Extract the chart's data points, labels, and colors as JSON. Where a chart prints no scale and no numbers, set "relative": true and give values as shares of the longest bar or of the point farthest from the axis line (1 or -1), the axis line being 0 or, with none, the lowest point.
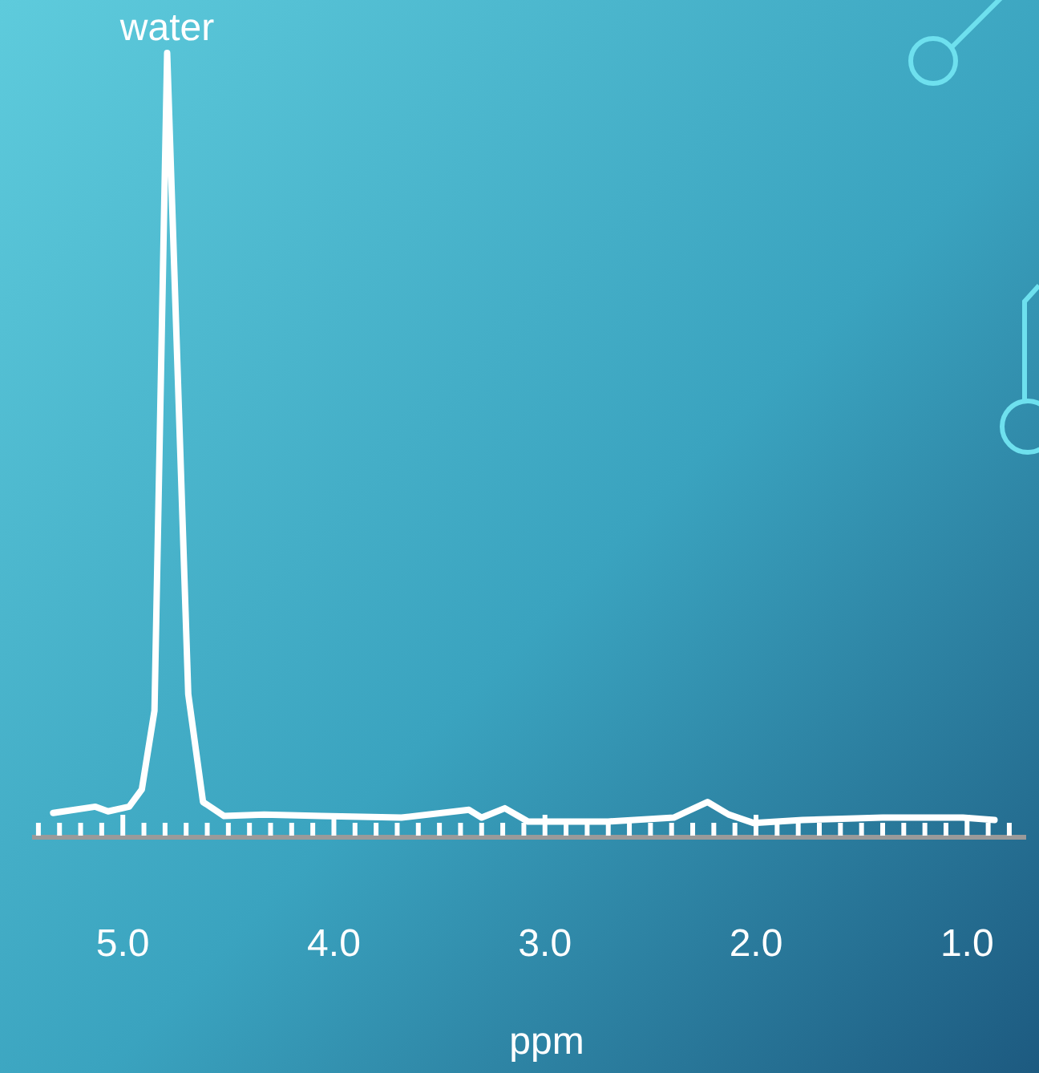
{
  "chart_data": {
    "type": "line",
    "xlabel": "ppm",
    "relative": true,
    "xlim": [
      5.43,
      0.72
    ],
    "xticks": [
      {
        "value": 5.0,
        "label": "5.0"
      },
      {
        "value": 4.0,
        "label": "4.0"
      },
      {
        "value": 3.0,
        "label": "3.0"
      },
      {
        "value": 2.0,
        "label": "2.0"
      },
      {
        "value": 1.0,
        "label": "1.0"
      },
      {
        "value": 5.4,
        "label": null
      },
      {
        "value": 5.3,
        "label": null
      },
      {
        "value": 5.2,
        "label": null
      },
      {
        "value": 5.1,
        "label": null
      },
      {
        "value": 4.9,
        "label": null
      },
      {
        "value": 4.8,
        "label": null
      },
      {
        "value": 4.7,
        "label": null
      },
      {
        "value": 4.6,
        "label": null
      },
      {
        "value": 4.5,
        "label": null
      },
      {
        "value": 4.4,
        "label": null
      },
      {
        "value": 4.3,
        "label": null
      },
      {
        "value": 4.2,
        "label": null
      },
      {
        "value": 4.1,
        "label": null
      },
      {
        "value": 3.9,
        "label": null
      },
      {
        "value": 3.8,
        "label": null
      },
      {
        "value": 3.7,
        "label": null
      },
      {
        "value": 3.6,
        "label": null
      },
      {
        "value": 3.5,
        "label": null
      },
      {
        "value": 3.4,
        "label": null
      },
      {
        "value": 3.3,
        "label": null
      },
      {
        "value": 3.2,
        "label": null
      },
      {
        "value": 3.1,
        "label": null
      },
      {
        "value": 2.9,
        "label": null
      },
      {
        "value": 2.8,
        "label": null
      },
      {
        "value": 2.7,
        "label": null
      },
      {
        "value": 2.6,
        "label": null
      },
      {
        "value": 2.5,
        "label": null
      },
      {
        "value": 2.4,
        "label": null
      },
      {
        "value": 2.3,
        "label": null
      },
      {
        "value": 2.2,
        "label": null
      },
      {
        "value": 2.1,
        "label": null
      },
      {
        "value": 1.9,
        "label": null
      },
      {
        "value": 1.8,
        "label": null
      },
      {
        "value": 1.7,
        "label": null
      },
      {
        "value": 1.6,
        "label": null
      },
      {
        "value": 1.5,
        "label": null
      },
      {
        "value": 1.4,
        "label": null
      },
      {
        "value": 1.3,
        "label": null
      },
      {
        "value": 1.2,
        "label": null
      },
      {
        "value": 1.1,
        "label": null
      },
      {
        "value": 0.9,
        "label": null
      },
      {
        "value": 0.8,
        "label": null
      }
    ],
    "x": [
      5.33,
      5.13,
      5.07,
      4.97,
      4.91,
      4.85,
      4.79,
      4.69,
      4.62,
      4.52,
      4.33,
      4.06,
      3.68,
      3.36,
      3.3,
      3.19,
      3.08,
      2.7,
      2.39,
      2.23,
      2.13,
      2.01,
      1.78,
      1.4,
      1.02,
      0.87
    ],
    "series": [
      {
        "color": "#ffffff",
        "values": [
          0.027,
          0.035,
          0.029,
          0.035,
          0.057,
          0.158,
          1,
          0.179,
          0.041,
          0.023,
          0.025,
          0.023,
          0.021,
          0.031,
          0.021,
          0.033,
          0.016,
          0.016,
          0.021,
          0.041,
          0.025,
          0.014,
          0.018,
          0.021,
          0.021,
          0.018
        ]
      }
    ],
    "annotations": [
      {
        "text": "water",
        "x": 4.79,
        "y": 1
      }
    ],
    "marker": "none",
    "line_style": "solid"
  }
}
